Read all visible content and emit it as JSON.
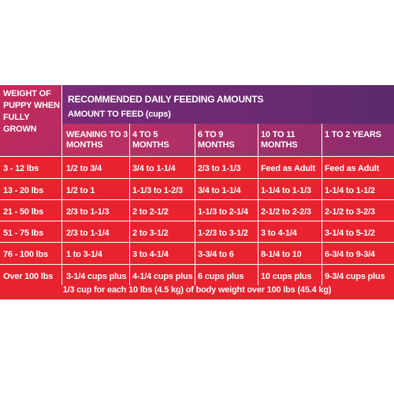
{
  "table": {
    "weight_header": "WEIGHT OF PUPPY WHEN FULLY GROWN",
    "title": "RECOMMENDED DAILY FEEDING AMOUNTS",
    "subtitle": "AMOUNT TO FEED (cups)",
    "columns": [
      "WEANING TO 3 MONTHS",
      "4 TO 5 MONTHS",
      "6 TO 9 MONTHS",
      "10 TO 11 MONTHS",
      "1 TO 2 YEARS"
    ],
    "rows": [
      {
        "weight": "3 - 12 lbs",
        "values": [
          "1/2 to 3/4",
          "3/4 to 1-1/4",
          "2/3 to 1-1/3",
          "Feed as Adult",
          "Feed as Adult"
        ]
      },
      {
        "weight": "13 - 20 lbs",
        "values": [
          "1/2 to 1",
          "1-1/3 to 1-2/3",
          "3/4 to 1-1/4",
          "1-1/4 to 1-1/3",
          "1-1/4 to 1-1/2"
        ]
      },
      {
        "weight": "21 - 50 lbs",
        "values": [
          "2/3 to 1-1/3",
          "2 to 2-1/2",
          "1-1/3 to 2-1/4",
          "2-1/2 to 2-2/3",
          "2-1/2 to 3-2/3"
        ]
      },
      {
        "weight": "51 - 75 lbs",
        "values": [
          "2/3 to 1-1/4",
          "2 to 3-1/2",
          "1-2/3 to 3-1/2",
          "3 to 4-1/4",
          "3-1/4 to 5-1/2"
        ]
      },
      {
        "weight": "76 - 100 lbs",
        "values": [
          "1 to 3-1/4",
          "3 to 4-1/4",
          "3-3/4 to 6",
          "8-1/4 to 10",
          "6-3/4 to 9-3/4"
        ]
      },
      {
        "weight": "Over 100 lbs",
        "values": [
          "3-1/4 cups plus",
          "4-1/4 cups plus",
          "6 cups plus",
          "10 cups plus",
          "9-3/4 cups plus"
        ]
      }
    ],
    "footnote": "1/3 cup for each 10 lbs (4.5 kg) of body weight over 100 lbs (45.4 kg)"
  }
}
